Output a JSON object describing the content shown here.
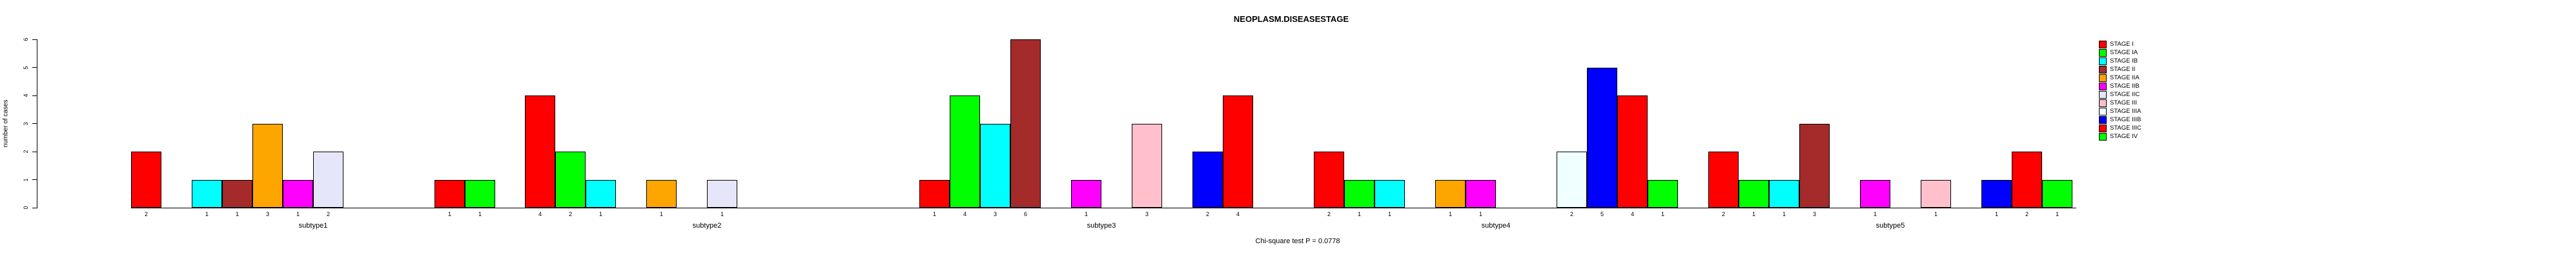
{
  "title": "NEOPLASM.DISEASESTAGE",
  "annotation": "Chi-square test P = 0.0778",
  "chart_data": {
    "type": "bar",
    "title": "NEOPLASM.DISEASESTAGE",
    "xlabel": "",
    "ylabel": "number of cases",
    "ylim": [
      0,
      6
    ],
    "yticks": [
      0,
      1,
      2,
      3,
      4,
      5,
      6
    ],
    "grid": false,
    "legend_position": "topright",
    "values_shown_under_bars": true,
    "categories": [
      "subtype1",
      "subtype2",
      "subtype3",
      "subtype4",
      "subtype5"
    ],
    "series": [
      {
        "name": "STAGE I",
        "color": "#FF0000",
        "values": [
          2,
          4,
          1,
          2,
          2
        ]
      },
      {
        "name": "STAGE IA",
        "color": "#00FF00",
        "values": [
          0,
          2,
          4,
          1,
          1
        ]
      },
      {
        "name": "STAGE IB",
        "color": "#00FFFF",
        "values": [
          1,
          1,
          3,
          1,
          1
        ]
      },
      {
        "name": "STAGE II",
        "color": "#A52A2A",
        "values": [
          1,
          0,
          6,
          0,
          3
        ]
      },
      {
        "name": "STAGE IIA",
        "color": "#FFA500",
        "values": [
          3,
          1,
          0,
          1,
          0
        ]
      },
      {
        "name": "STAGE IIB",
        "color": "#FF00FF",
        "values": [
          1,
          0,
          1,
          1,
          1
        ]
      },
      {
        "name": "STAGE IIC",
        "color": "#E6E6FA",
        "values": [
          2,
          1,
          0,
          0,
          0
        ]
      },
      {
        "name": "STAGE III",
        "color": "#FFC0CB",
        "values": [
          0,
          0,
          3,
          0,
          1
        ]
      },
      {
        "name": "STAGE IIIA",
        "color": "#F0FFFF",
        "values": [
          0,
          0,
          0,
          2,
          0
        ]
      },
      {
        "name": "STAGE IIIB",
        "color": "#0000FF",
        "values": [
          0,
          0,
          2,
          5,
          1
        ]
      },
      {
        "name": "STAGE IIIC",
        "color": "#FF0000",
        "values": [
          1,
          0,
          4,
          4,
          2
        ]
      },
      {
        "name": "STAGE IV",
        "color": "#00FF00",
        "values": [
          1,
          0,
          0,
          1,
          1
        ]
      }
    ]
  }
}
